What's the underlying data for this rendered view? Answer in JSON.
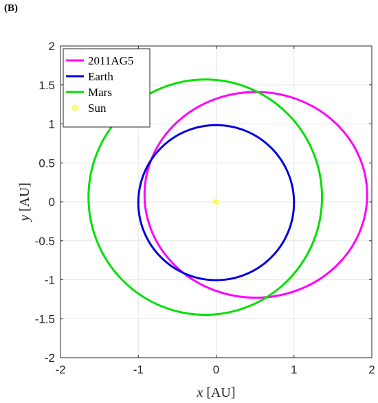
{
  "panel_label": "(B)",
  "chart_data": {
    "type": "line",
    "xlabel_var": "x",
    "xlabel_unit": "[AU]",
    "ylabel_var": "y",
    "ylabel_unit": "[AU]",
    "xlim": [
      -2,
      2
    ],
    "ylim": [
      -2,
      2
    ],
    "xticks": [
      -2,
      -1,
      0,
      1,
      2
    ],
    "yticks": [
      -2,
      -1.5,
      -1,
      -0.5,
      0,
      0.5,
      1,
      1.5,
      2
    ],
    "xtick_labels": [
      "-2",
      "-1",
      "0",
      "1",
      "2"
    ],
    "ytick_labels": [
      "-2",
      "-1.5",
      "-1",
      "-0.5",
      "0",
      "0.5",
      "1",
      "1.5",
      "2"
    ],
    "grid": true,
    "legend_position": "top-left",
    "series": [
      {
        "name": "2011AG5",
        "kind": "ellipse",
        "color": "#ff00ff",
        "center": [
          0.51,
          0.09
        ],
        "rx": 1.43,
        "ry": 1.32
      },
      {
        "name": "Earth",
        "kind": "ellipse",
        "color": "#0000e0",
        "center": [
          0.0,
          -0.01
        ],
        "rx": 1.0,
        "ry": 0.995
      },
      {
        "name": "Mars",
        "kind": "ellipse",
        "color": "#00e000",
        "center": [
          -0.14,
          0.06
        ],
        "rx": 1.5,
        "ry": 1.51
      },
      {
        "name": "Sun",
        "kind": "point",
        "color": "#ffff00",
        "x": 0,
        "y": 0
      }
    ]
  }
}
